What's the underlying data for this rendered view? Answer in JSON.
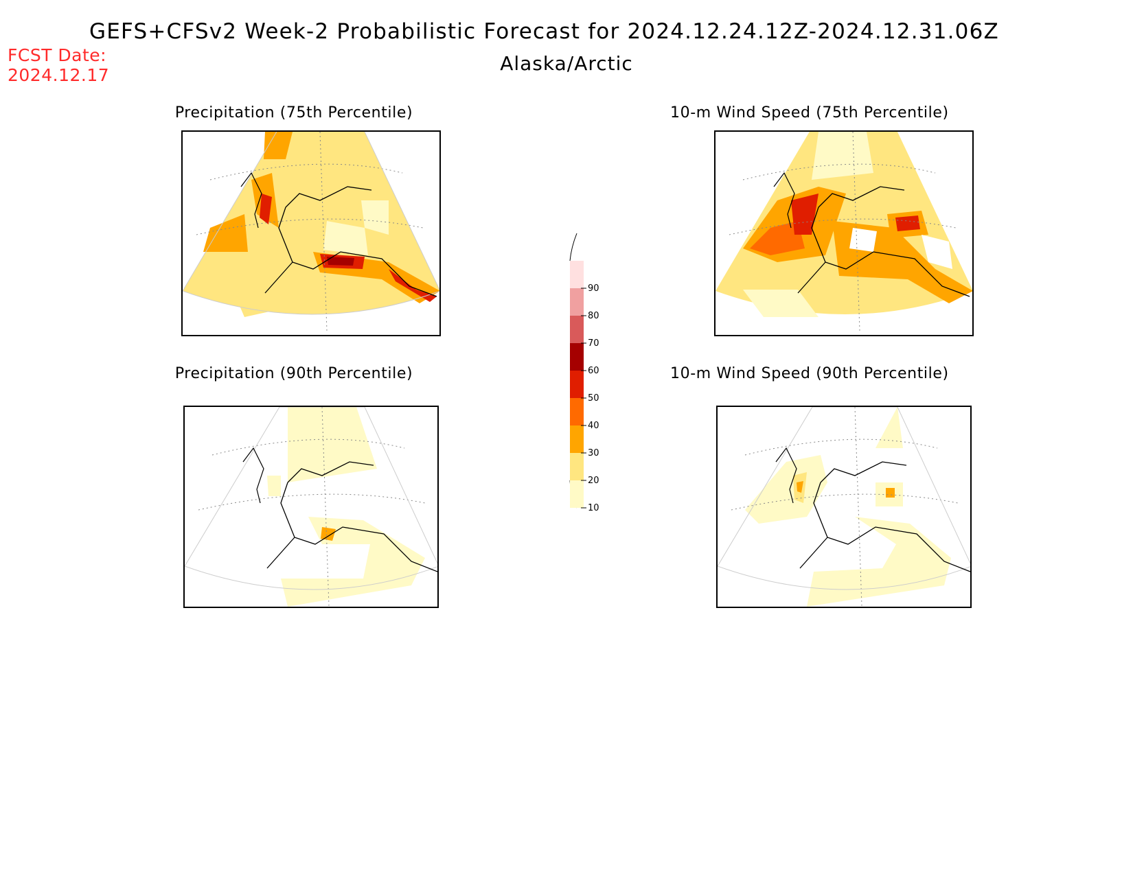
{
  "header": {
    "title": "GEFS+CFSv2 Week-2 Probabilistic Forecast for 2024.12.24.12Z-2024.12.31.06Z",
    "region": "Alaska/Arctic",
    "fcst_label": "FCST Date:",
    "fcst_date": "2024.12.17"
  },
  "panels": [
    {
      "title": "Precipitation (75th Percentile)"
    },
    {
      "title": "10-m Wind Speed (75th Percentile)"
    },
    {
      "title": "Precipitation (90th Percentile)"
    },
    {
      "title": "10-m Wind Speed (90th Percentile)"
    }
  ],
  "colorbar": {
    "levels": [
      "10",
      "20",
      "30",
      "40",
      "50",
      "60",
      "70",
      "80",
      "90"
    ],
    "colors": [
      "#fffac6",
      "#ffe680",
      "#ffa500",
      "#ff6a00",
      "#e01e00",
      "#a50000",
      "#d95a5a",
      "#f0a0a0",
      "#ffe0e0"
    ]
  }
}
